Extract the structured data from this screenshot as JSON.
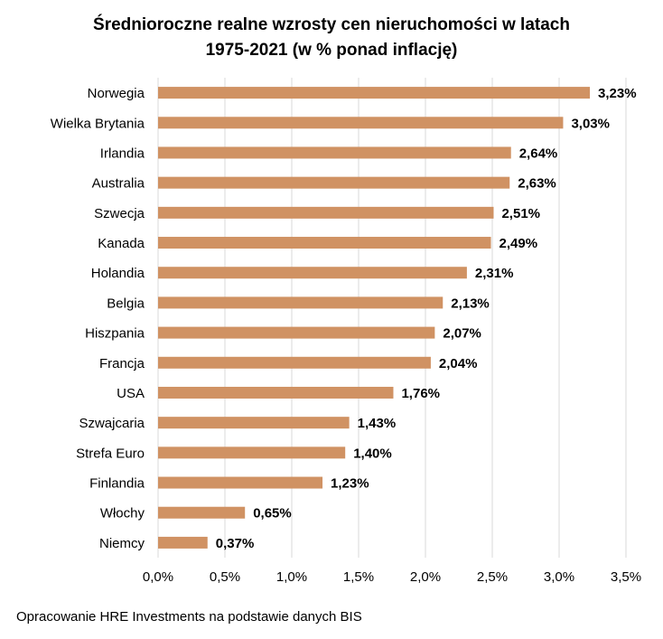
{
  "chart_data": {
    "type": "bar",
    "orientation": "horizontal",
    "title_lines": [
      "Średnioroczne realne wzrosty cen nieruchomości w latach",
      "1975-2021 (w % ponad inflację)"
    ],
    "categories": [
      "Norwegia",
      "Wielka Brytania",
      "Irlandia",
      "Australia",
      "Szwecja",
      "Kanada",
      "Holandia",
      "Belgia",
      "Hiszpania",
      "Francja",
      "USA",
      "Szwajcaria",
      "Strefa Euro",
      "Finlandia",
      "Włochy",
      "Niemcy"
    ],
    "values": [
      3.23,
      3.03,
      2.64,
      2.63,
      2.51,
      2.49,
      2.31,
      2.13,
      2.07,
      2.04,
      1.76,
      1.43,
      1.4,
      1.23,
      0.65,
      0.37
    ],
    "data_labels": [
      "3,23%",
      "3,03%",
      "2,64%",
      "2,63%",
      "2,51%",
      "2,49%",
      "2,31%",
      "2,13%",
      "2,07%",
      "2,04%",
      "1,76%",
      "1,43%",
      "1,40%",
      "1,23%",
      "0,65%",
      "0,37%"
    ],
    "x_ticks": [
      0,
      0.5,
      1,
      1.5,
      2,
      2.5,
      3,
      3.5
    ],
    "x_tick_labels": [
      "0,0%",
      "0,5%",
      "1,0%",
      "1,5%",
      "2,0%",
      "2,5%",
      "3,0%",
      "3,5%"
    ],
    "xlim": [
      0,
      3.5
    ],
    "xlabel": "",
    "ylabel": "",
    "grid": "vertical",
    "bar_color": "#d09263",
    "grid_color": "#d9d9d9"
  },
  "source_note": "Opracowanie HRE Investments na podstawie danych BIS"
}
